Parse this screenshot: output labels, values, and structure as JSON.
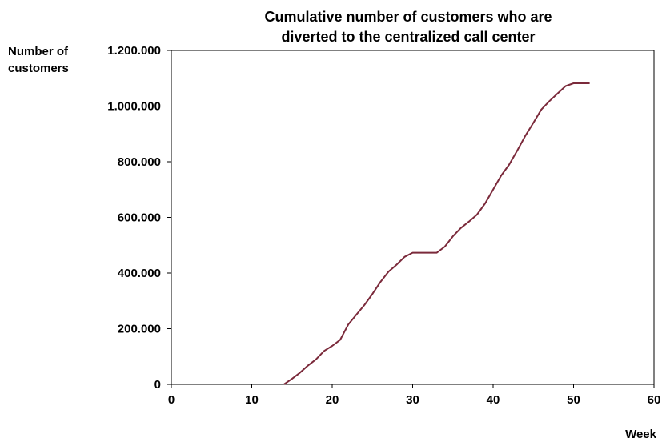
{
  "chart_data": {
    "type": "line",
    "title_lines": [
      "Cumulative number of customers who are",
      "diverted to the centralized call center"
    ],
    "ylabel_lines": [
      "Number of",
      "customers"
    ],
    "xlabel": "Week",
    "xlim": [
      0,
      60
    ],
    "ylim": [
      0,
      1200000
    ],
    "x_ticks": [
      0,
      10,
      20,
      30,
      40,
      50,
      60
    ],
    "y_ticks": [
      0,
      200000,
      400000,
      600000,
      800000,
      1000000,
      1200000
    ],
    "x_tick_labels": [
      "0",
      "10",
      "20",
      "30",
      "40",
      "50",
      "60"
    ],
    "y_tick_labels": [
      "0",
      "200.000",
      "400.000",
      "600.000",
      "800.000",
      "1.000.000",
      "1.200.000"
    ],
    "grid": false,
    "legend": "none",
    "series": [
      {
        "color": "#7b2a3b",
        "points": [
          [
            14,
            0
          ],
          [
            15,
            20000
          ],
          [
            16,
            42000
          ],
          [
            17,
            68000
          ],
          [
            18,
            90000
          ],
          [
            19,
            120000
          ],
          [
            20,
            138000
          ],
          [
            21,
            160000
          ],
          [
            22,
            215000
          ],
          [
            23,
            250000
          ],
          [
            24,
            285000
          ],
          [
            25,
            325000
          ],
          [
            26,
            368000
          ],
          [
            27,
            405000
          ],
          [
            28,
            430000
          ],
          [
            29,
            458000
          ],
          [
            30,
            473000
          ],
          [
            31,
            473000
          ],
          [
            32,
            473000
          ],
          [
            33,
            473000
          ],
          [
            34,
            495000
          ],
          [
            35,
            532000
          ],
          [
            36,
            562000
          ],
          [
            37,
            585000
          ],
          [
            38,
            610000
          ],
          [
            39,
            650000
          ],
          [
            40,
            700000
          ],
          [
            41,
            750000
          ],
          [
            42,
            790000
          ],
          [
            43,
            840000
          ],
          [
            44,
            893000
          ],
          [
            45,
            940000
          ],
          [
            46,
            988000
          ],
          [
            47,
            1018000
          ],
          [
            48,
            1045000
          ],
          [
            49,
            1072000
          ],
          [
            50,
            1082000
          ],
          [
            51,
            1082000
          ],
          [
            52,
            1082000
          ]
        ]
      }
    ]
  }
}
